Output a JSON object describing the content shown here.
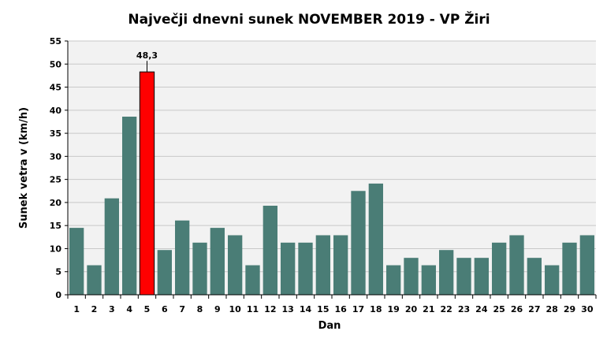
{
  "chart_data": {
    "type": "bar",
    "title": "Največji dnevni sunek NOVEMBER 2019 - VP Žiri",
    "xlabel": "Dan",
    "ylabel": "Sunek vetra  v (km/h)",
    "ylim": [
      0,
      55
    ],
    "ytick_step": 5,
    "grid": true,
    "legend": "none",
    "categories": [
      "1",
      "2",
      "3",
      "4",
      "5",
      "6",
      "7",
      "8",
      "9",
      "10",
      "11",
      "12",
      "13",
      "14",
      "15",
      "16",
      "17",
      "18",
      "19",
      "20",
      "21",
      "22",
      "23",
      "24",
      "25",
      "26",
      "27",
      "28",
      "29",
      "30"
    ],
    "values": [
      14.5,
      6.4,
      20.9,
      38.6,
      48.3,
      9.7,
      16.1,
      11.3,
      14.5,
      12.9,
      6.4,
      19.3,
      11.3,
      11.3,
      12.9,
      12.9,
      22.5,
      24.1,
      6.4,
      8.0,
      6.4,
      9.7,
      8.0,
      8.0,
      11.3,
      12.9,
      8.0,
      6.4,
      11.3,
      12.9
    ],
    "highlight": {
      "index": 4,
      "label": "48,3"
    },
    "colors": {
      "bar": "#4a7d76",
      "highlight": "#ff0000",
      "plot_background": "#f2f2f2",
      "grid": "#c8c8c8"
    }
  }
}
